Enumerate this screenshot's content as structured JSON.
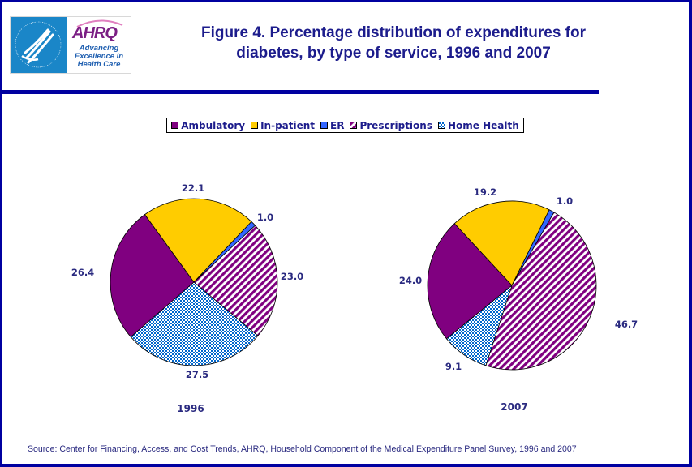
{
  "header": {
    "logo": {
      "hhs_alt": "Department of Health & Human Services USA",
      "ahrq_name": "AHRQ",
      "ahrq_tagline": [
        "Advancing",
        "Excellence in",
        "Health Care"
      ]
    },
    "title_line1": "Figure 4. Percentage distribution of expenditures for",
    "title_line2": "diabetes, by type of service, 1996 and 2007"
  },
  "colors": {
    "frame": "#0000a0",
    "title": "#1c1c8c",
    "Ambulatory": "#800080",
    "In-patient": "#ffcc00",
    "ER": "#3366ff",
    "Prescriptions_fg": "#800080",
    "Prescriptions_bg": "#ffffff",
    "Home Health_fg": "#0066cc",
    "Home Health_bg": "#ffffff"
  },
  "legend": {
    "items": [
      {
        "label": "Ambulatory",
        "pattern": "solid"
      },
      {
        "label": "In-patient",
        "pattern": "solid"
      },
      {
        "label": "ER",
        "pattern": "solid"
      },
      {
        "label": "Prescriptions",
        "pattern": "diagonal-stripes"
      },
      {
        "label": "Home Health",
        "pattern": "dots"
      }
    ]
  },
  "chart_data": [
    {
      "type": "pie",
      "title": "1996",
      "categories": [
        "Ambulatory",
        "In-patient",
        "ER",
        "Prescriptions",
        "Home Health"
      ],
      "values": [
        26.4,
        22.1,
        1.0,
        23.0,
        27.5
      ],
      "data_labels": [
        "26.4",
        "22.1",
        "1.0",
        "23.0",
        "27.5"
      ],
      "legend_position": "top",
      "units": "percent"
    },
    {
      "type": "pie",
      "title": "2007",
      "categories": [
        "Ambulatory",
        "In-patient",
        "ER",
        "Prescriptions",
        "Home Health"
      ],
      "values": [
        24.0,
        19.2,
        1.0,
        46.7,
        9.1
      ],
      "data_labels": [
        "24.0",
        "19.2",
        "1.0",
        "46.7",
        "9.1"
      ],
      "legend_position": "top",
      "units": "percent"
    }
  ],
  "footer": {
    "source": "Source: Center for Financing, Access, and Cost Trends, AHRQ, Household Component of the Medical Expenditure Panel Survey, 1996 and 2007"
  }
}
